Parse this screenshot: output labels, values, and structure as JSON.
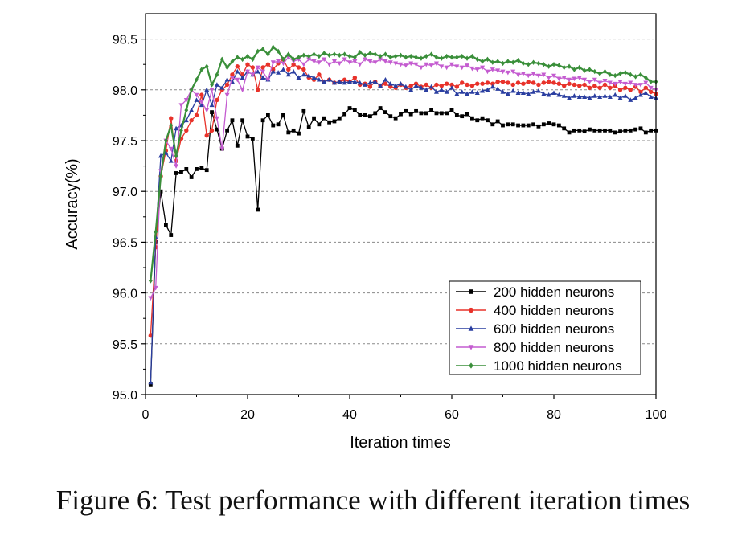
{
  "caption": "Figure 6: Test performance with different iteration times",
  "chart_data": {
    "type": "line",
    "title": "",
    "xlabel": "Iteration times",
    "ylabel": "Accuracy(%)",
    "xlim": [
      0,
      100
    ],
    "ylim": [
      95.0,
      98.75
    ],
    "xticks": [
      0,
      20,
      40,
      60,
      80,
      100
    ],
    "yticks": [
      "95.0",
      "95.5",
      "96.0",
      "96.5",
      "97.0",
      "97.5",
      "98.0",
      "98.5"
    ],
    "grid": "horizontal dashed",
    "legend_position": "bottom-right",
    "x": [
      1,
      2,
      3,
      4,
      5,
      6,
      7,
      8,
      9,
      10,
      11,
      12,
      13,
      14,
      15,
      16,
      17,
      18,
      19,
      20,
      21,
      22,
      23,
      24,
      25,
      26,
      27,
      28,
      29,
      30,
      31,
      32,
      33,
      34,
      35,
      36,
      37,
      38,
      39,
      40,
      41,
      42,
      43,
      44,
      45,
      46,
      47,
      48,
      49,
      50,
      51,
      52,
      53,
      54,
      55,
      56,
      57,
      58,
      59,
      60,
      61,
      62,
      63,
      64,
      65,
      66,
      67,
      68,
      69,
      70,
      71,
      72,
      73,
      74,
      75,
      76,
      77,
      78,
      79,
      80,
      81,
      82,
      83,
      84,
      85,
      86,
      87,
      88,
      89,
      90,
      91,
      92,
      93,
      94,
      95,
      96,
      97,
      98,
      99,
      100
    ],
    "series": [
      {
        "name": "200 hidden neurons",
        "color": "#000000",
        "marker": "square",
        "values": [
          95.1,
          96.5,
          97.0,
          96.67,
          96.57,
          97.18,
          97.19,
          97.22,
          97.14,
          97.22,
          97.23,
          97.21,
          97.78,
          97.61,
          97.42,
          97.6,
          97.7,
          97.45,
          97.7,
          97.54,
          97.52,
          96.82,
          97.7,
          97.75,
          97.65,
          97.66,
          97.75,
          97.58,
          97.6,
          97.57,
          97.79,
          97.63,
          97.72,
          97.66,
          97.72,
          97.68,
          97.69,
          97.72,
          97.76,
          97.82,
          97.8,
          97.75,
          97.75,
          97.74,
          97.77,
          97.82,
          97.78,
          97.74,
          97.72,
          97.76,
          97.79,
          97.76,
          97.79,
          97.77,
          97.77,
          97.8,
          97.77,
          97.77,
          97.77,
          97.8,
          97.75,
          97.74,
          97.76,
          97.72,
          97.7,
          97.72,
          97.7,
          97.66,
          97.69,
          97.65,
          97.66,
          97.66,
          97.65,
          97.65,
          97.65,
          97.66,
          97.64,
          97.66,
          97.67,
          97.66,
          97.65,
          97.62,
          97.58,
          97.6,
          97.6,
          97.59,
          97.61,
          97.6,
          97.6,
          97.6,
          97.6,
          97.58,
          97.59,
          97.6,
          97.6,
          97.61,
          97.62,
          97.58,
          97.6,
          97.6
        ]
      },
      {
        "name": "400 hidden neurons",
        "color": "#e8322a",
        "marker": "circle",
        "values": [
          95.58,
          96.45,
          97.15,
          97.4,
          97.72,
          97.3,
          97.52,
          97.6,
          97.7,
          97.75,
          97.95,
          97.55,
          97.6,
          97.9,
          98.0,
          98.05,
          98.15,
          98.23,
          98.15,
          98.25,
          98.22,
          98.0,
          98.22,
          98.25,
          98.2,
          98.26,
          98.3,
          98.2,
          98.25,
          98.22,
          98.2,
          98.12,
          98.1,
          98.15,
          98.08,
          98.1,
          98.07,
          98.08,
          98.1,
          98.08,
          98.12,
          98.05,
          98.06,
          98.03,
          98.08,
          98.04,
          98.06,
          98.03,
          98.02,
          98.05,
          98.02,
          98.04,
          98.06,
          98.03,
          98.05,
          98.02,
          98.05,
          98.04,
          98.06,
          98.05,
          98.03,
          98.07,
          98.05,
          98.04,
          98.06,
          98.06,
          98.07,
          98.06,
          98.08,
          98.08,
          98.07,
          98.05,
          98.07,
          98.06,
          98.08,
          98.07,
          98.05,
          98.07,
          98.08,
          98.07,
          98.06,
          98.04,
          98.06,
          98.05,
          98.04,
          98.05,
          98.02,
          98.04,
          98.02,
          98.05,
          98.02,
          98.04,
          98.0,
          98.02,
          98.0,
          98.03,
          97.98,
          98.02,
          97.98,
          97.96
        ]
      },
      {
        "name": "600 hidden neurons",
        "color": "#2a3ea0",
        "marker": "triangle-up",
        "values": [
          95.12,
          96.55,
          97.35,
          97.38,
          97.3,
          97.62,
          97.65,
          97.7,
          97.8,
          97.9,
          97.85,
          98.0,
          97.85,
          98.05,
          98.02,
          98.1,
          98.08,
          98.18,
          98.12,
          98.18,
          98.15,
          98.18,
          98.12,
          98.1,
          98.18,
          98.17,
          98.2,
          98.15,
          98.18,
          98.12,
          98.15,
          98.14,
          98.12,
          98.1,
          98.08,
          98.1,
          98.07,
          98.08,
          98.07,
          98.08,
          98.08,
          98.07,
          98.05,
          98.07,
          98.08,
          98.04,
          98.1,
          98.06,
          98.04,
          98.06,
          98.03,
          98.0,
          98.04,
          98.02,
          98.0,
          98.03,
          97.98,
          98.0,
          97.98,
          98.02,
          97.96,
          97.98,
          97.96,
          97.98,
          97.97,
          97.99,
          98.0,
          98.03,
          98.01,
          97.98,
          97.96,
          97.99,
          97.97,
          97.97,
          97.96,
          97.98,
          97.99,
          97.96,
          97.95,
          97.97,
          97.95,
          97.94,
          97.92,
          97.94,
          97.93,
          97.93,
          97.92,
          97.94,
          97.93,
          97.94,
          97.93,
          97.95,
          97.92,
          97.94,
          97.9,
          97.92,
          97.95,
          97.97,
          97.93,
          97.92
        ]
      },
      {
        "name": "800 hidden neurons",
        "color": "#c45cd0",
        "marker": "triangle-down",
        "values": [
          95.95,
          96.05,
          97.2,
          97.5,
          97.42,
          97.25,
          97.85,
          97.9,
          98.0,
          97.95,
          97.88,
          97.8,
          98.0,
          97.72,
          97.42,
          97.95,
          98.12,
          98.1,
          98.0,
          98.18,
          98.15,
          98.22,
          98.18,
          98.1,
          98.27,
          98.28,
          98.26,
          98.32,
          98.28,
          98.3,
          98.25,
          98.3,
          98.28,
          98.27,
          98.3,
          98.25,
          98.28,
          98.26,
          98.3,
          98.27,
          98.28,
          98.25,
          98.3,
          98.28,
          98.27,
          98.3,
          98.28,
          98.27,
          98.26,
          98.25,
          98.24,
          98.26,
          98.25,
          98.22,
          98.25,
          98.24,
          98.26,
          98.23,
          98.22,
          98.25,
          98.23,
          98.22,
          98.24,
          98.21,
          98.2,
          98.22,
          98.18,
          98.2,
          98.19,
          98.18,
          98.17,
          98.18,
          98.15,
          98.16,
          98.14,
          98.16,
          98.14,
          98.15,
          98.12,
          98.14,
          98.11,
          98.12,
          98.1,
          98.11,
          98.12,
          98.1,
          98.08,
          98.1,
          98.07,
          98.09,
          98.07,
          98.06,
          98.08,
          98.06,
          98.07,
          98.05,
          98.05,
          98.07,
          98.02,
          98.0
        ]
      },
      {
        "name": "1000 hidden neurons",
        "color": "#3a8f3a",
        "marker": "diamond",
        "values": [
          96.12,
          96.6,
          97.15,
          97.5,
          97.65,
          97.35,
          97.6,
          97.8,
          98.0,
          98.1,
          98.2,
          98.23,
          98.05,
          98.15,
          98.3,
          98.22,
          98.28,
          98.32,
          98.3,
          98.33,
          98.3,
          98.38,
          98.4,
          98.35,
          98.42,
          98.38,
          98.3,
          98.35,
          98.3,
          98.32,
          98.34,
          98.33,
          98.35,
          98.33,
          98.36,
          98.34,
          98.35,
          98.34,
          98.35,
          98.33,
          98.32,
          98.37,
          98.34,
          98.36,
          98.35,
          98.33,
          98.35,
          98.32,
          98.33,
          98.34,
          98.32,
          98.33,
          98.32,
          98.31,
          98.33,
          98.35,
          98.32,
          98.31,
          98.33,
          98.32,
          98.32,
          98.33,
          98.31,
          98.33,
          98.3,
          98.28,
          98.3,
          98.27,
          98.28,
          98.26,
          98.28,
          98.27,
          98.29,
          98.26,
          98.25,
          98.27,
          98.26,
          98.25,
          98.23,
          98.25,
          98.24,
          98.22,
          98.23,
          98.2,
          98.22,
          98.19,
          98.2,
          98.18,
          98.16,
          98.18,
          98.15,
          98.14,
          98.16,
          98.17,
          98.15,
          98.13,
          98.15,
          98.12,
          98.08,
          98.08
        ]
      }
    ]
  }
}
